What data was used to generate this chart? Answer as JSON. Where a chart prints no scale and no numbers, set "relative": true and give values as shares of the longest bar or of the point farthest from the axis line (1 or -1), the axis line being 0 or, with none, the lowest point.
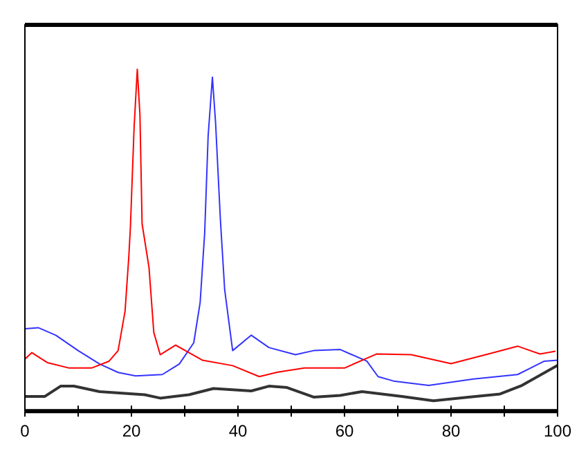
{
  "chart_data": {
    "type": "line",
    "relative": true,
    "grid": false,
    "legend": false,
    "marker": "none",
    "xlim": [
      0,
      100
    ],
    "xticks": [
      0,
      {
        "value": 10,
        "label": null
      },
      20,
      {
        "value": 30,
        "label": null
      },
      40,
      {
        "value": 50,
        "label": null
      },
      60,
      {
        "value": 70,
        "label": null
      },
      80,
      {
        "value": 90,
        "label": null
      },
      100
    ],
    "series": [
      {
        "color": "#ff0000",
        "x": [
          0,
          1.3,
          4.2,
          8.3,
          12.5,
          15.8,
          17.5,
          18.8,
          19.5,
          19.8,
          20.5,
          21.1,
          21.6,
          22,
          23.3,
          24.2,
          25.4,
          28.3,
          33.3,
          39,
          44,
          47.5,
          52.5,
          60,
          66,
          72.5,
          80,
          88,
          92.5,
          96.7,
          99.6
        ],
        "values": [
          0.152,
          0.171,
          0.142,
          0.126,
          0.126,
          0.146,
          0.177,
          0.292,
          0.45,
          0.536,
          0.83,
          1.0,
          0.866,
          0.548,
          0.42,
          0.23,
          0.165,
          0.193,
          0.149,
          0.133,
          0.101,
          0.114,
          0.126,
          0.126,
          0.167,
          0.165,
          0.139,
          0.171,
          0.19,
          0.167,
          0.175
        ]
      },
      {
        "color": "#3333ff",
        "x": [
          0,
          2.5,
          5.8,
          10,
          14,
          17.5,
          20.8,
          25.8,
          29,
          31.7,
          32.9,
          33.75,
          34.4,
          35.2,
          35.8,
          36.7,
          37.5,
          39,
          42.5,
          45.8,
          50.8,
          54.2,
          59.2,
          64.2,
          66.3,
          69.2,
          75.8,
          84.2,
          92.5,
          97.5,
          100
        ],
        "values": [
          0.241,
          0.244,
          0.222,
          0.177,
          0.138,
          0.113,
          0.103,
          0.107,
          0.138,
          0.2,
          0.318,
          0.521,
          0.805,
          0.977,
          0.843,
          0.56,
          0.356,
          0.177,
          0.222,
          0.186,
          0.165,
          0.177,
          0.18,
          0.146,
          0.101,
          0.088,
          0.075,
          0.094,
          0.107,
          0.146,
          0.149
        ]
      },
      {
        "color": "#333333",
        "x": [
          0,
          3.75,
          6.7,
          9.2,
          14,
          22.5,
          25.4,
          30.8,
          35.4,
          42.5,
          45.8,
          49.2,
          54.2,
          59.2,
          63.3,
          70.8,
          76.7,
          83.3,
          89.2,
          93.3,
          100
        ],
        "values": [
          0.043,
          0.043,
          0.073,
          0.073,
          0.057,
          0.048,
          0.038,
          0.048,
          0.066,
          0.059,
          0.073,
          0.069,
          0.041,
          0.046,
          0.057,
          0.043,
          0.03,
          0.041,
          0.05,
          0.075,
          0.134
        ]
      }
    ]
  }
}
